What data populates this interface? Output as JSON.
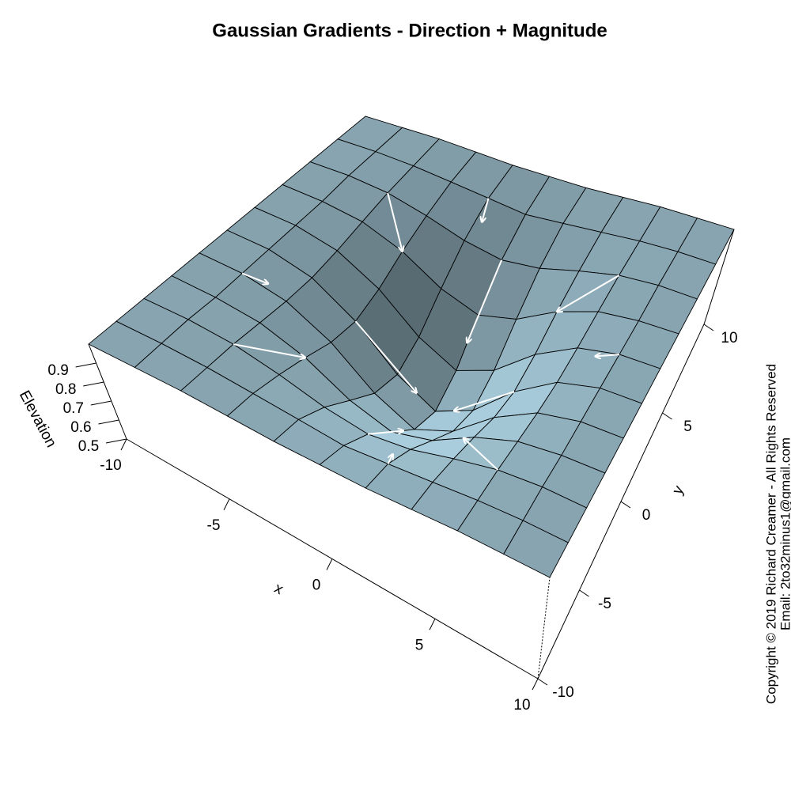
{
  "chart_data": {
    "type": "surface",
    "title": "Gaussian Gradients - Direction + Magnitude",
    "xlabel": "x",
    "ylabel": "y",
    "zlabel": "Elevation",
    "annotations": [
      "Copyright © 2019 Richard Creamer - All Rights Reserved",
      "Email: 2to32minus1@gmail.com"
    ],
    "color": "#87a4b0",
    "arrow_color": "#ffffff",
    "xlim": [
      -10,
      10
    ],
    "ylim": [
      -10,
      10
    ],
    "zlim": [
      0.5,
      1
    ],
    "xticks": [
      -10,
      -5,
      0,
      5,
      10
    ],
    "yticks": [
      -10,
      -5,
      0,
      5,
      10
    ],
    "zticks": [
      0.5,
      0.6,
      0.7,
      0.8,
      0.9
    ],
    "x": [
      -10,
      -8,
      -6,
      -4,
      -2,
      0,
      2,
      4,
      6,
      8,
      10
    ],
    "y": [
      -10,
      -8,
      -6,
      -4,
      -2,
      0,
      2,
      4,
      6,
      8,
      10
    ],
    "z": [
      [
        1,
        1,
        1,
        0.99,
        0.98,
        0.98,
        0.98,
        0.99,
        1,
        1,
        1
      ],
      [
        1,
        1,
        0.99,
        0.97,
        0.95,
        0.93,
        0.95,
        0.97,
        0.99,
        1,
        1
      ],
      [
        1,
        1,
        0.98,
        0.93,
        0.87,
        0.84,
        0.87,
        0.93,
        0.98,
        1,
        1
      ],
      [
        1,
        0.99,
        0.96,
        0.88,
        0.76,
        0.7,
        0.76,
        0.88,
        0.96,
        0.99,
        1
      ],
      [
        1,
        0.99,
        0.94,
        0.82,
        0.65,
        0.56,
        0.65,
        0.82,
        0.94,
        0.99,
        1
      ],
      [
        1,
        0.99,
        0.93,
        0.79,
        0.6,
        0.5,
        0.6,
        0.79,
        0.93,
        0.99,
        1
      ],
      [
        1,
        0.99,
        0.94,
        0.82,
        0.65,
        0.56,
        0.65,
        0.82,
        0.94,
        0.99,
        1
      ],
      [
        1,
        0.99,
        0.96,
        0.88,
        0.76,
        0.7,
        0.76,
        0.88,
        0.96,
        0.99,
        1
      ],
      [
        1,
        1,
        0.98,
        0.93,
        0.87,
        0.84,
        0.87,
        0.93,
        0.98,
        1,
        1
      ],
      [
        1,
        1,
        0.99,
        0.97,
        0.95,
        0.93,
        0.95,
        0.97,
        0.99,
        1,
        1
      ],
      [
        1,
        1,
        1,
        0.99,
        0.98,
        0.98,
        0.98,
        0.99,
        1,
        1,
        1
      ]
    ],
    "arrows": [
      {
        "x": -6,
        "y": -6,
        "u": 2,
        "v": 2
      },
      {
        "x": 6,
        "y": -6,
        "u": -2.5,
        "v": 2
      },
      {
        "x": -6,
        "y": 6,
        "u": 2,
        "v": -2
      },
      {
        "x": 6,
        "y": 6,
        "u": -2,
        "v": -2
      },
      {
        "x": 0,
        "y": -6,
        "u": 0,
        "v": 3
      },
      {
        "x": -4,
        "y": 0,
        "u": 3,
        "v": 0
      },
      {
        "x": 4,
        "y": 0,
        "u": -3,
        "v": 0
      },
      {
        "x": 0,
        "y": 6,
        "u": 0,
        "v": -3
      },
      {
        "x": -8,
        "y": -2,
        "u": 1,
        "v": 0.3
      },
      {
        "x": 8,
        "y": 2,
        "u": -1,
        "v": -0.3
      },
      {
        "x": 2,
        "y": -8,
        "u": -0.3,
        "v": 1
      },
      {
        "x": -2,
        "y": 8,
        "u": 0.3,
        "v": -1
      }
    ]
  }
}
